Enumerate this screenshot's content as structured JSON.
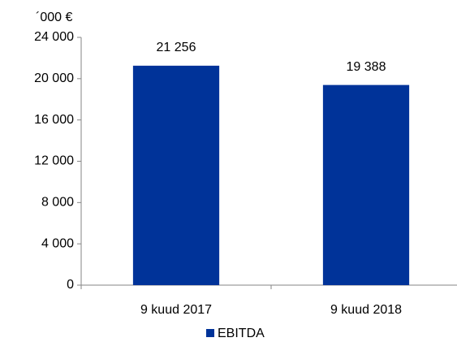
{
  "chart_data": {
    "type": "bar",
    "y_axis_label": "´000 €",
    "categories": [
      "9 kuud 2017",
      "9 kuud 2018"
    ],
    "series": [
      {
        "name": "EBITDA",
        "color": "#003399",
        "values": [
          21256,
          19388
        ],
        "value_labels": [
          "21 256",
          "19 388"
        ]
      }
    ],
    "ylim": [
      0,
      24000
    ],
    "yticks": [
      0,
      {
        "value": 4000,
        "label": "4 000"
      },
      {
        "value": 8000,
        "label": "8 000"
      },
      {
        "value": 12000,
        "label": "12 000"
      },
      {
        "value": 16000,
        "label": "16 000"
      },
      {
        "value": 20000,
        "label": "20 000"
      },
      {
        "value": 24000,
        "label": "24 000"
      }
    ],
    "grid": false,
    "legend": "bottom"
  }
}
